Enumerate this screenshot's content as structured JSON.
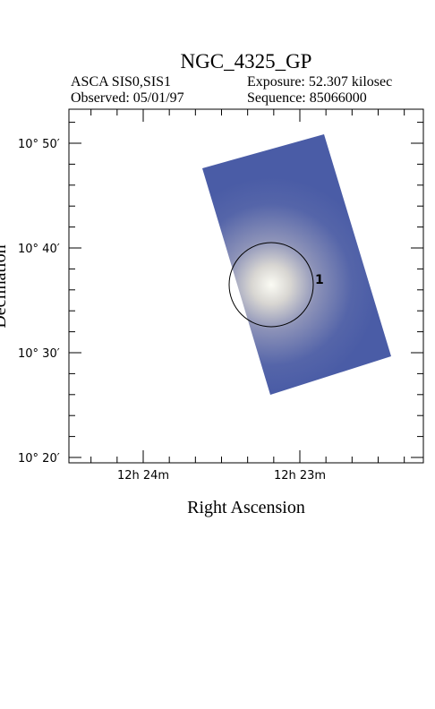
{
  "header": {
    "title": "NGC_4325_GP",
    "instrument": "ASCA SIS0,SIS1",
    "exposure": "Exposure: 52.307 kilosec",
    "observed": "Observed: 05/01/97",
    "sequence": "Sequence: 85066000"
  },
  "axes": {
    "x_label": "Right Ascension",
    "y_label": "Declination",
    "x_ticks": [
      "12h 24m",
      "12h 23m"
    ],
    "y_ticks": [
      "10° 50′",
      "10° 40′",
      "10° 30′",
      "10° 20′"
    ]
  },
  "sources": [
    {
      "label": "1"
    }
  ]
}
